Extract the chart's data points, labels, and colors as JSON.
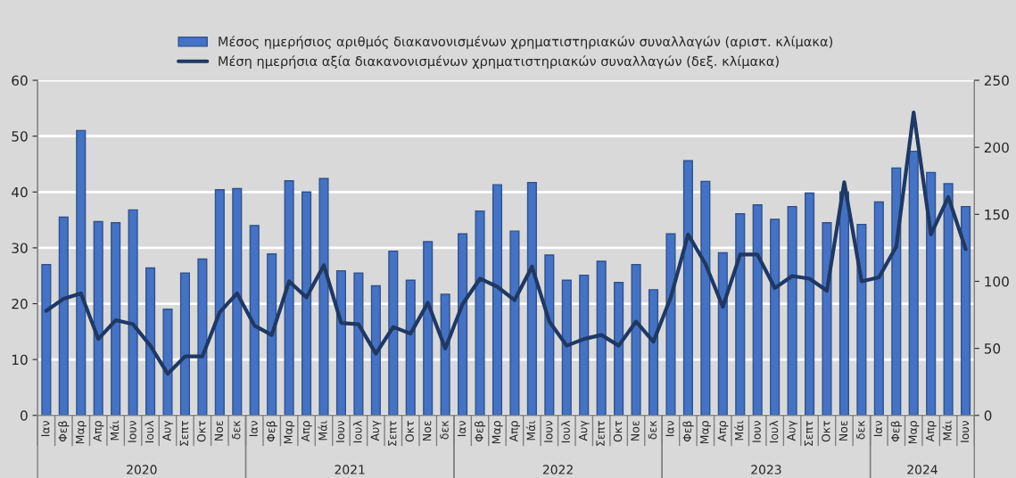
{
  "chart_data": {
    "type": "bar",
    "categories": [
      "Ιαν",
      "Φεβ",
      "Μαρ",
      "Απρ",
      "Μάι",
      "Ιουν",
      "Ιουλ",
      "Αυγ",
      "Σεπτ",
      "Οκτ",
      "Νοε",
      "δεκ",
      "Ιαν",
      "Φεβ",
      "Μαρ",
      "Απρ",
      "Μάι",
      "Ιουν",
      "Ιουλ",
      "Αυγ",
      "Σεπτ",
      "Οκτ",
      "Νοε",
      "δεκ",
      "Ιαν",
      "Φεβ",
      "Μαρ",
      "Απρ",
      "Μάι",
      "Ιουν",
      "Ιουλ",
      "Αυγ",
      "Σεπτ",
      "Οκτ",
      "Νοε",
      "δεκ",
      "Ιαν",
      "Φεβ",
      "Μαρ",
      "Απρ",
      "Μάι",
      "Ιουν",
      "Ιουλ",
      "Αυγ",
      "Σεπτ",
      "Οκτ",
      "Νοε",
      "δεκ",
      "Ιαν",
      "Φεβ",
      "Μαρ",
      "Απρ",
      "Μάι",
      "Ιουν"
    ],
    "series": [
      {
        "name": "Μέσος ημερήσιος αριθμός διακανονισμένων χρηματιστηριακών συναλλαγών (αριστ. κλίμακα)",
        "color": "#4472c4",
        "values": [
          27,
          35.5,
          51,
          34.7,
          34.5,
          36.8,
          26.4,
          19,
          25.5,
          28,
          40.4,
          40.6,
          34,
          28.9,
          42,
          40,
          42.4,
          25.9,
          25.5,
          23.2,
          29.4,
          24.2,
          31.1,
          21.7,
          32.5,
          36.6,
          41.3,
          33,
          41.7,
          28.7,
          24.2,
          25.1,
          27.6,
          23.8,
          27,
          22.5,
          32.5,
          45.6,
          41.9,
          29.1,
          36.1,
          37.7,
          35.1,
          37.4,
          39.8,
          34.5,
          40,
          34.2,
          38.2,
          44.3,
          47.3,
          43.5,
          41.5,
          37.4
        ]
      },
      {
        "name": "Μέση ημερήσια αξία διακανονισμένων χρηματιστηριακών συναλλαγών (δεξ. κλίμακα)",
        "type": "line",
        "axis": "y2",
        "color": "#1f3864",
        "values": [
          78,
          87,
          91,
          57,
          71,
          68,
          52,
          31,
          44,
          44,
          77,
          91,
          67,
          60,
          100,
          88,
          112,
          69,
          68,
          46,
          66,
          61,
          84,
          50,
          83,
          102,
          96,
          86,
          111,
          70,
          52,
          57,
          60,
          52,
          70,
          55,
          88,
          135,
          113,
          81,
          120,
          120,
          95,
          104,
          102,
          93,
          174,
          100,
          103,
          126,
          226,
          135,
          163,
          124
        ]
      }
    ],
    "annotations": [
      "2020",
      "2021",
      "2022",
      "2023",
      "2024"
    ],
    "ylim": [
      0,
      60
    ],
    "yticks": [
      0,
      10,
      20,
      30,
      40,
      50,
      60
    ],
    "y2lim": [
      0,
      250
    ],
    "y2ticks": [
      0,
      50,
      100,
      150,
      200,
      250
    ],
    "grid": "y",
    "legend": "top",
    "line_style": "solid",
    "marker": "none"
  }
}
